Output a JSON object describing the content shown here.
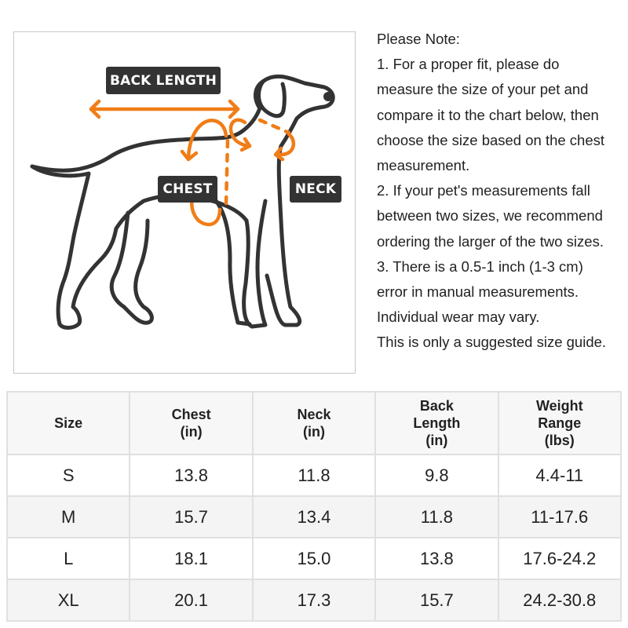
{
  "illustration": {
    "labels": {
      "back_length": "BACK LENGTH",
      "chest": "CHEST",
      "neck": "NECK"
    },
    "colors": {
      "accent": "#f07d17",
      "outline": "#333333",
      "label_bg": "#333333"
    }
  },
  "notes": {
    "lines": [
      "Please Note:",
      "1. For a proper fit, please do",
      "measure the size of your pet and",
      "compare it to the chart below, then",
      "choose the size based on the chest",
      "measurement.",
      "2. If your pet's measurements fall",
      "between two sizes, we recommend",
      "ordering the larger of the two sizes.",
      "3. There is a 0.5-1 inch (1-3 cm)",
      "error in manual measurements.",
      "Individual wear may vary.",
      "This is only a suggested size guide."
    ]
  },
  "size_table": {
    "headers": [
      [
        "Size"
      ],
      [
        "Chest",
        "(in)"
      ],
      [
        "Neck",
        "(in)"
      ],
      [
        "Back",
        "Length",
        "(in)"
      ],
      [
        "Weight",
        "Range",
        "(lbs)"
      ]
    ],
    "rows": [
      [
        "S",
        "13.8",
        "11.8",
        "9.8",
        "4.4-11"
      ],
      [
        "M",
        "15.7",
        "13.4",
        "11.8",
        "11-17.6"
      ],
      [
        "L",
        "18.1",
        "15.0",
        "13.8",
        "17.6-24.2"
      ],
      [
        "XL",
        "20.1",
        "17.3",
        "15.7",
        "24.2-30.8"
      ]
    ]
  }
}
